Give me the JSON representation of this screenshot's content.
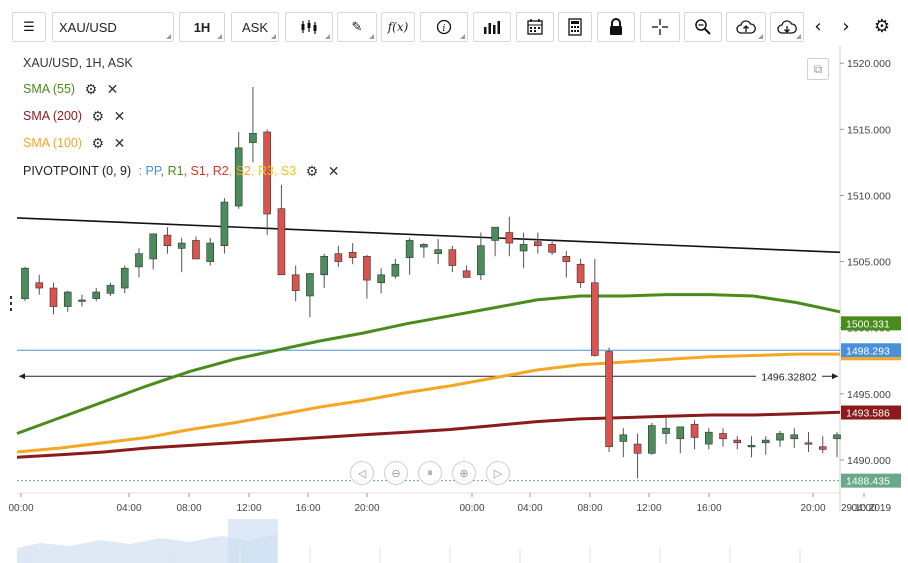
{
  "toolbar": {
    "symbol": "XAU/USD",
    "timeframe": "1H",
    "price_type": "ASK",
    "icons": [
      "menu-icon",
      "candlestick-icon",
      "draw-pencil-icon",
      "function-icon",
      "info-icon",
      "bar-chart-icon",
      "calendar-icon",
      "calculator-icon",
      "lock-icon",
      "crosshair-icon",
      "zoom-icon",
      "cloud-upload-icon",
      "cloud-download-icon",
      "chevron-left-icon",
      "chevron-right-icon",
      "gear-icon"
    ]
  },
  "legend": {
    "title": "XAU/USD, 1H, ASK",
    "indicators": [
      {
        "label": "SMA (55)",
        "color": "#4a8c1c"
      },
      {
        "label": "SMA (200)",
        "color": "#8b1a1a"
      },
      {
        "label": "SMA (100)",
        "color": "#f5a623"
      }
    ],
    "pivot_name": "PIVOTPOINT (0, 9)",
    "pivot_parts": [
      {
        "text": ": PP",
        "color": "#4a90d9"
      },
      {
        "text": ", R1",
        "color": "#4a8c1c"
      },
      {
        "text": ", S1",
        "color": "#d9342b"
      },
      {
        "text": ", R2",
        "color": "#d9342b"
      },
      {
        "text": ", S2",
        "color": "#f5a623"
      },
      {
        "text": ", R3",
        "color": "#f5c518"
      },
      {
        "text": ", S3",
        "color": "#f5c518"
      }
    ]
  },
  "chart_data": {
    "type": "candlestick",
    "symbol": "XAU/USD",
    "interval": "1H",
    "y_ticks": [
      "1520.000",
      "1515.000",
      "1510.000",
      "1505.000",
      "1500.000",
      "1495.000",
      "1490.000"
    ],
    "x_ticks": [
      "00:00",
      "04:00",
      "08:00",
      "12:00",
      "16:00",
      "20:00",
      "00:00",
      "04:00",
      "08:00",
      "12:00",
      "16:00",
      "20:00",
      "04:00",
      "29.10.2019"
    ],
    "ylim": [
      1487.5,
      1521.0
    ],
    "candles": [
      [
        1502.2,
        1504.6,
        1502.0,
        1504.5
      ],
      [
        1503.4,
        1504.0,
        1502.5,
        1503.0
      ],
      [
        1503.0,
        1503.4,
        1501.0,
        1501.6
      ],
      [
        1501.6,
        1502.8,
        1501.2,
        1502.7
      ],
      [
        1502.0,
        1502.5,
        1501.6,
        1502.1
      ],
      [
        1502.2,
        1503.0,
        1502.0,
        1502.7
      ],
      [
        1502.6,
        1503.4,
        1502.4,
        1503.2
      ],
      [
        1503.0,
        1504.7,
        1502.6,
        1504.5
      ],
      [
        1504.6,
        1506.0,
        1503.8,
        1505.6
      ],
      [
        1505.2,
        1507.1,
        1504.4,
        1507.1
      ],
      [
        1507.0,
        1507.6,
        1505.6,
        1506.2
      ],
      [
        1506.0,
        1506.8,
        1504.2,
        1506.4
      ],
      [
        1506.6,
        1506.9,
        1505.4,
        1505.2
      ],
      [
        1505.0,
        1506.8,
        1504.7,
        1506.4
      ],
      [
        1506.2,
        1509.8,
        1505.6,
        1509.5
      ],
      [
        1509.2,
        1514.8,
        1509.0,
        1513.6
      ],
      [
        1514.0,
        1518.2,
        1512.5,
        1514.7
      ],
      [
        1514.8,
        1515.0,
        1507.0,
        1508.6
      ],
      [
        1509.0,
        1510.8,
        1504.0,
        1504.0
      ],
      [
        1504.0,
        1504.7,
        1502.0,
        1502.8
      ],
      [
        1502.4,
        1504.0,
        1500.8,
        1504.1
      ],
      [
        1504.0,
        1505.6,
        1503.0,
        1505.4
      ],
      [
        1505.6,
        1506.2,
        1504.6,
        1505.0
      ],
      [
        1505.7,
        1506.4,
        1504.8,
        1505.3
      ],
      [
        1505.4,
        1505.5,
        1502.2,
        1503.6
      ],
      [
        1503.4,
        1504.5,
        1502.6,
        1504.0
      ],
      [
        1503.9,
        1505.2,
        1503.7,
        1504.8
      ],
      [
        1505.3,
        1506.8,
        1504.0,
        1506.6
      ],
      [
        1506.1,
        1506.4,
        1505.3,
        1506.3
      ],
      [
        1505.6,
        1506.7,
        1504.8,
        1505.9
      ],
      [
        1505.9,
        1506.2,
        1504.2,
        1504.7
      ],
      [
        1504.3,
        1504.7,
        1503.8,
        1503.8
      ],
      [
        1504.0,
        1507.2,
        1503.6,
        1506.2
      ],
      [
        1506.6,
        1507.4,
        1505.4,
        1507.6
      ],
      [
        1507.2,
        1508.4,
        1505.4,
        1506.4
      ],
      [
        1505.8,
        1507.2,
        1504.5,
        1506.3
      ],
      [
        1506.5,
        1507.2,
        1505.6,
        1506.2
      ],
      [
        1506.3,
        1506.7,
        1505.5,
        1505.7
      ],
      [
        1505.4,
        1505.8,
        1503.8,
        1505.0
      ],
      [
        1504.8,
        1505.2,
        1503.0,
        1503.4
      ],
      [
        1503.4,
        1505.2,
        1497.8,
        1497.9
      ],
      [
        1498.2,
        1498.5,
        1490.6,
        1491.0
      ],
      [
        1491.4,
        1492.4,
        1490.2,
        1491.9
      ],
      [
        1491.2,
        1492.0,
        1488.6,
        1490.5
      ],
      [
        1490.5,
        1492.8,
        1490.4,
        1492.6
      ],
      [
        1492.0,
        1493.2,
        1491.2,
        1492.4
      ],
      [
        1491.6,
        1492.4,
        1490.5,
        1492.5
      ],
      [
        1492.7,
        1493.0,
        1490.8,
        1491.7
      ],
      [
        1491.2,
        1492.4,
        1490.8,
        1492.1
      ],
      [
        1492.0,
        1492.4,
        1491.0,
        1491.6
      ],
      [
        1491.5,
        1491.8,
        1490.8,
        1491.3
      ],
      [
        1491.1,
        1491.8,
        1490.2,
        1491.1
      ],
      [
        1491.3,
        1491.8,
        1490.4,
        1491.5
      ],
      [
        1491.5,
        1492.2,
        1491.0,
        1492.0
      ],
      [
        1491.6,
        1492.4,
        1490.9,
        1491.9
      ],
      [
        1491.3,
        1492.1,
        1490.6,
        1491.2
      ],
      [
        1491.0,
        1491.8,
        1490.5,
        1490.8
      ],
      [
        1491.6,
        1492.1,
        1490.2,
        1491.9
      ]
    ],
    "series": [
      {
        "name": "SMA (55)",
        "color": "#4a8c1c",
        "values": [
          1492.0,
          1493.2,
          1494.4,
          1495.6,
          1496.7,
          1497.6,
          1498.3,
          1499.0,
          1499.6,
          1500.3,
          1500.9,
          1501.5,
          1502.1,
          1502.4,
          1502.4,
          1502.5,
          1502.5,
          1502.4,
          1501.9,
          1501.2
        ]
      },
      {
        "name": "SMA (100)",
        "color": "#f5a623",
        "values": [
          1490.6,
          1490.9,
          1491.3,
          1491.7,
          1492.3,
          1492.8,
          1493.4,
          1494.0,
          1494.5,
          1495.1,
          1495.6,
          1496.2,
          1496.8,
          1497.2,
          1497.4,
          1497.6,
          1497.8,
          1497.9,
          1498.0,
          1498.0
        ]
      },
      {
        "name": "SMA (200)",
        "color": "#8b1a1a",
        "values": [
          1490.2,
          1490.4,
          1490.6,
          1490.9,
          1491.1,
          1491.3,
          1491.5,
          1491.7,
          1491.9,
          1492.1,
          1492.3,
          1492.6,
          1492.9,
          1493.1,
          1493.2,
          1493.3,
          1493.4,
          1493.4,
          1493.5,
          1493.6
        ]
      }
    ],
    "trend_line": [
      1508.3,
      1505.7
    ],
    "labels": {
      "sma55_value": "1500.331",
      "pp_value": "1498.293",
      "sma200_value": "1493.586",
      "last_price": "1488.435",
      "crosshair_value": "1496.32802"
    },
    "colors": {
      "bull": "#4a8c5c",
      "bear": "#d9534f",
      "pp_line": "#4a90d9",
      "trend": "#111111"
    }
  },
  "navigator": {
    "buttons": [
      "nav-left-icon",
      "zoom-out-icon",
      "reset-icon",
      "zoom-in-icon",
      "nav-right-icon"
    ]
  }
}
